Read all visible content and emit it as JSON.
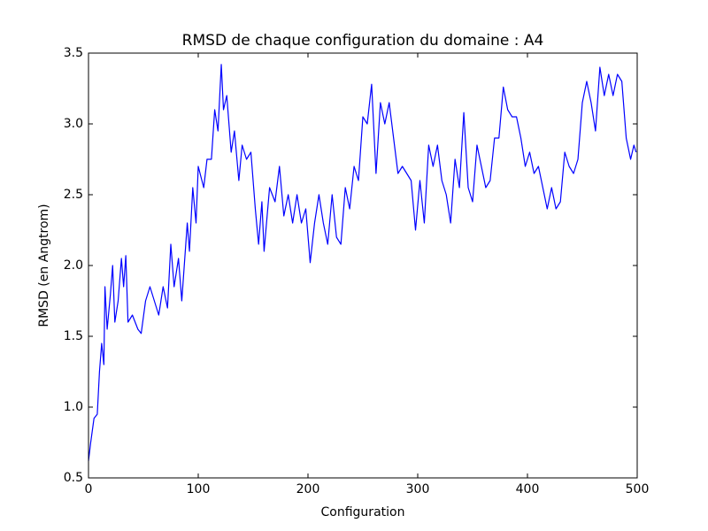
{
  "chart_data": {
    "type": "line",
    "title": "RMSD de chaque configuration du domaine : A4",
    "x_label": "Configuration",
    "y_label": "RMSD (en Angtrom)",
    "xlim": [
      0,
      500
    ],
    "ylim": [
      0.5,
      3.5
    ],
    "xticks": [
      0,
      100,
      200,
      300,
      400,
      500
    ],
    "yticks": [
      0.5,
      {
        "value": 1.0,
        "label": "1.0"
      },
      1.5,
      {
        "value": 2.0,
        "label": "2.0"
      },
      2.5,
      {
        "value": 3.0,
        "label": "3.0"
      },
      3.5
    ],
    "grid": false,
    "series": [
      {
        "name": "RMSD",
        "color": "#0000ff",
        "x": [
          0,
          2,
          5,
          8,
          10,
          12,
          14,
          15,
          17,
          20,
          22,
          24,
          27,
          30,
          32,
          34,
          36,
          40,
          45,
          48,
          52,
          56,
          60,
          64,
          68,
          72,
          75,
          78,
          82,
          85,
          90,
          92,
          95,
          98,
          100,
          105,
          108,
          112,
          115,
          118,
          121,
          123,
          126,
          130,
          133,
          137,
          140,
          144,
          148,
          152,
          155,
          158,
          160,
          165,
          170,
          174,
          178,
          182,
          186,
          190,
          194,
          198,
          202,
          206,
          210,
          214,
          218,
          222,
          226,
          230,
          234,
          238,
          242,
          246,
          250,
          254,
          258,
          262,
          266,
          270,
          274,
          278,
          282,
          286,
          290,
          294,
          298,
          302,
          306,
          310,
          314,
          318,
          322,
          326,
          330,
          334,
          338,
          342,
          346,
          350,
          354,
          358,
          362,
          366,
          370,
          374,
          378,
          382,
          386,
          390,
          394,
          398,
          402,
          406,
          410,
          414,
          418,
          422,
          426,
          430,
          434,
          438,
          442,
          446,
          450,
          454,
          458,
          462,
          466,
          470,
          474,
          478,
          482,
          486,
          490,
          494,
          497,
          499
        ],
        "values": [
          0.62,
          0.75,
          0.92,
          0.95,
          1.25,
          1.45,
          1.3,
          1.85,
          1.55,
          1.8,
          2.0,
          1.6,
          1.75,
          2.05,
          1.85,
          2.07,
          1.6,
          1.65,
          1.55,
          1.52,
          1.75,
          1.85,
          1.75,
          1.65,
          1.85,
          1.7,
          2.15,
          1.85,
          2.05,
          1.75,
          2.3,
          2.1,
          2.55,
          2.3,
          2.7,
          2.55,
          2.75,
          2.75,
          3.1,
          2.95,
          3.42,
          3.1,
          3.2,
          2.8,
          2.95,
          2.6,
          2.85,
          2.75,
          2.8,
          2.4,
          2.15,
          2.45,
          2.1,
          2.55,
          2.45,
          2.7,
          2.35,
          2.5,
          2.3,
          2.5,
          2.3,
          2.4,
          2.02,
          2.3,
          2.5,
          2.3,
          2.15,
          2.5,
          2.2,
          2.15,
          2.55,
          2.4,
          2.7,
          2.6,
          3.05,
          3.0,
          3.28,
          2.65,
          3.15,
          3.0,
          3.15,
          2.9,
          2.65,
          2.7,
          2.65,
          2.6,
          2.25,
          2.6,
          2.3,
          2.85,
          2.7,
          2.85,
          2.6,
          2.5,
          2.3,
          2.75,
          2.55,
          3.08,
          2.55,
          2.45,
          2.85,
          2.7,
          2.55,
          2.6,
          2.9,
          2.9,
          3.26,
          3.1,
          3.05,
          3.05,
          2.9,
          2.7,
          2.8,
          2.65,
          2.7,
          2.55,
          2.4,
          2.55,
          2.4,
          2.45,
          2.8,
          2.7,
          2.65,
          2.75,
          3.15,
          3.3,
          3.15,
          2.95,
          3.4,
          3.2,
          3.35,
          3.2,
          3.35,
          3.3,
          2.9,
          2.75,
          2.85,
          2.8
        ]
      }
    ]
  }
}
